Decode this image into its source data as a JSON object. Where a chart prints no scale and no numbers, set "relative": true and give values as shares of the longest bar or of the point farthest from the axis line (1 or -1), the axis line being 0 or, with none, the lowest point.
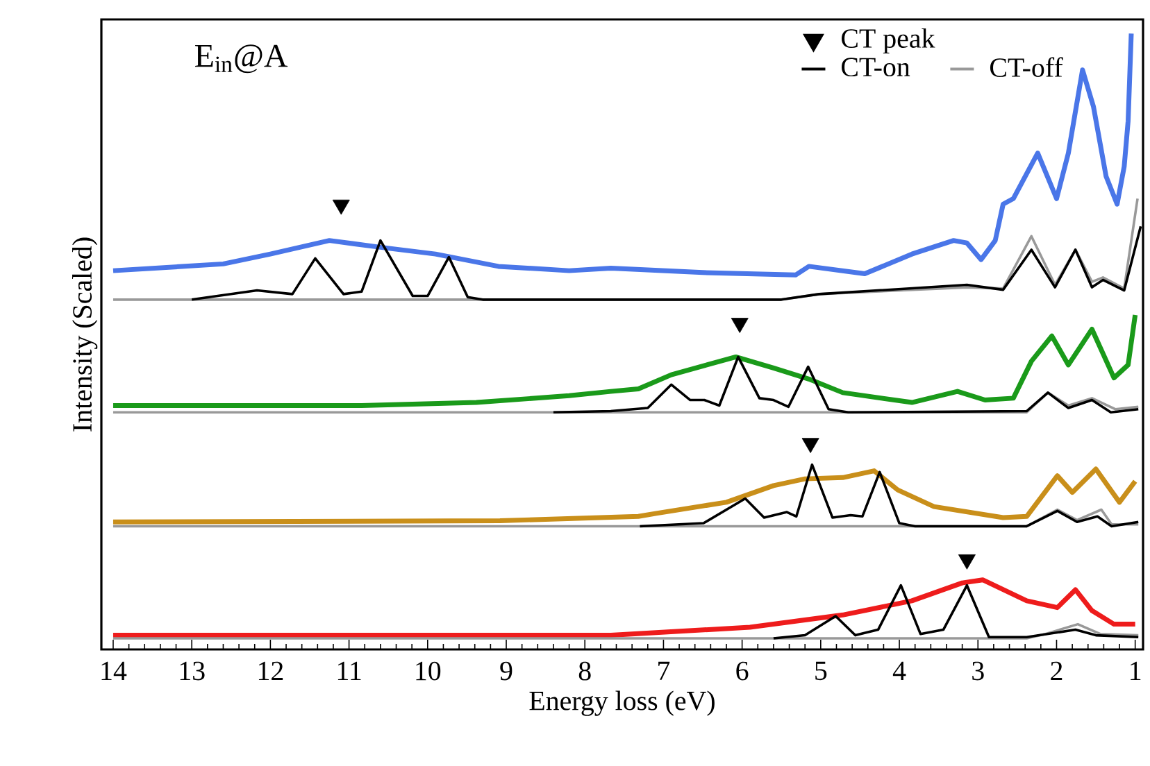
{
  "chart_data": {
    "type": "line",
    "relative": true,
    "xlabel": "Energy loss (eV)",
    "ylabel": "Intensity (Scaled)",
    "annotations": [
      "E$_{in}$@A"
    ],
    "xlim": [
      14.15,
      0.9
    ],
    "xticks": [
      14,
      13,
      12,
      11,
      10,
      9,
      8,
      7,
      6,
      5,
      4,
      3,
      2,
      1
    ],
    "legend": "top right",
    "line_style": "solid",
    "series": [
      {
        "color": "#4a76e8",
        "x": [
          14.0,
          12.6,
          12.0,
          11.25,
          10.6,
          9.9,
          9.1,
          8.2,
          7.67,
          6.5,
          5.32,
          5.15,
          4.44,
          3.84,
          3.31,
          3.14,
          2.96,
          2.78,
          2.68,
          2.55,
          2.24,
          2.0,
          1.85,
          1.67,
          1.53,
          1.37,
          1.23,
          1.14,
          1.09,
          1.05
        ],
        "values": [
          0.615,
          0.626,
          0.642,
          0.664,
          0.653,
          0.642,
          0.622,
          0.615,
          0.619,
          0.612,
          0.608,
          0.622,
          0.61,
          0.642,
          0.664,
          0.66,
          0.633,
          0.664,
          0.723,
          0.732,
          0.806,
          0.732,
          0.806,
          0.941,
          0.881,
          0.768,
          0.723,
          0.784,
          0.858,
          1
        ]
      },
      {
        "color": "#1a9a1a",
        "x": [
          14.0,
          10.84,
          9.38,
          8.2,
          7.67,
          7.32,
          6.9,
          6.08,
          5.6,
          5.15,
          4.72,
          3.84,
          3.26,
          2.91,
          2.55,
          2.32,
          2.06,
          1.85,
          1.55,
          1.27,
          1.09,
          1.0
        ],
        "values": [
          0.396,
          0.396,
          0.401,
          0.412,
          0.419,
          0.423,
          0.446,
          0.475,
          0.457,
          0.439,
          0.417,
          0.401,
          0.419,
          0.405,
          0.408,
          0.468,
          0.509,
          0.462,
          0.52,
          0.441,
          0.462,
          0.543
        ]
      },
      {
        "color": "#c98f1a",
        "x": [
          14.0,
          9.08,
          7.32,
          7.09,
          6.2,
          5.6,
          5.2,
          4.72,
          4.32,
          4.02,
          3.56,
          2.68,
          2.38,
          1.99,
          1.8,
          1.5,
          1.2,
          1.0
        ],
        "values": [
          0.207,
          0.209,
          0.216,
          0.221,
          0.239,
          0.266,
          0.277,
          0.279,
          0.29,
          0.259,
          0.232,
          0.214,
          0.216,
          0.282,
          0.255,
          0.293,
          0.239,
          0.273
        ]
      },
      {
        "color": "#ee1c1c",
        "x": [
          14.0,
          7.67,
          5.9,
          4.72,
          3.84,
          3.2,
          2.94,
          2.38,
          1.99,
          1.76,
          1.55,
          1.27,
          1.0
        ],
        "values": [
          0.023,
          0.023,
          0.036,
          0.056,
          0.079,
          0.108,
          0.113,
          0.079,
          0.068,
          0.097,
          0.063,
          0.041,
          0.041
        ]
      },
      {
        "name": "CT-off",
        "color": "#999999",
        "x": [
          14.0,
          5.5,
          5.02,
          3.14,
          2.68,
          2.32,
          2.02,
          1.76,
          1.55,
          1.41,
          1.14,
          0.97
        ],
        "values": [
          0.568,
          0.568,
          0.577,
          0.588,
          0.586,
          0.671,
          0.592,
          0.649,
          0.597,
          0.604,
          0.586,
          0.732
        ]
      },
      {
        "color": "#999999",
        "x": [
          14.0,
          2.38,
          2.11,
          1.85,
          1.55,
          1.25,
          0.96
        ],
        "values": [
          0.385,
          0.385,
          0.417,
          0.396,
          0.408,
          0.39,
          0.394
        ]
      },
      {
        "color": "#999999",
        "x": [
          14.0,
          2.38,
          1.99,
          1.74,
          1.43,
          1.3,
          0.96
        ],
        "values": [
          0.2,
          0.2,
          0.227,
          0.21,
          0.227,
          0.203,
          0.203
        ]
      },
      {
        "color": "#999999",
        "x": [
          14.0,
          2.38,
          2.14,
          1.73,
          1.44,
          0.96
        ],
        "values": [
          0.018,
          0.018,
          0.025,
          0.041,
          0.025,
          0.023
        ]
      },
      {
        "name": "CT-on",
        "color": "#000000",
        "x": [
          13.0,
          12.17,
          11.72,
          11.43,
          11.07,
          10.84,
          10.6,
          10.19,
          10.0,
          9.73,
          9.49,
          9.3,
          5.5,
          5.02,
          3.14,
          2.68,
          2.32,
          2.02,
          1.76,
          1.55,
          1.41,
          1.14,
          0.93
        ],
        "values": [
          0.568,
          0.583,
          0.577,
          0.635,
          0.577,
          0.581,
          0.664,
          0.574,
          0.574,
          0.637,
          0.572,
          0.568,
          0.568,
          0.577,
          0.592,
          0.584,
          0.649,
          0.588,
          0.649,
          0.588,
          0.6,
          0.583,
          0.687
        ]
      },
      {
        "color": "#000000",
        "x": [
          8.4,
          7.67,
          7.2,
          6.9,
          6.66,
          6.48,
          6.29,
          6.05,
          5.78,
          5.6,
          5.41,
          5.16,
          4.9,
          4.65,
          2.38,
          2.11,
          1.85,
          1.55,
          1.31,
          0.96
        ],
        "values": [
          0.385,
          0.387,
          0.392,
          0.43,
          0.405,
          0.405,
          0.396,
          0.475,
          0.408,
          0.405,
          0.394,
          0.459,
          0.39,
          0.385,
          0.387,
          0.417,
          0.392,
          0.405,
          0.385,
          0.39
        ]
      },
      {
        "color": "#000000",
        "x": [
          7.3,
          6.49,
          5.96,
          5.72,
          5.43,
          5.31,
          5.11,
          4.85,
          4.62,
          4.47,
          4.25,
          4.0,
          3.8,
          2.38,
          1.99,
          1.74,
          1.48,
          1.3,
          0.96
        ],
        "values": [
          0.2,
          0.205,
          0.245,
          0.214,
          0.223,
          0.216,
          0.3,
          0.214,
          0.218,
          0.216,
          0.288,
          0.205,
          0.2,
          0.2,
          0.225,
          0.207,
          0.216,
          0.2,
          0.207
        ]
      },
      {
        "color": "#000000",
        "x": [
          5.6,
          5.2,
          4.81,
          4.56,
          4.27,
          3.98,
          3.73,
          3.44,
          3.14,
          2.86,
          2.38,
          1.76,
          1.5,
          0.96
        ],
        "values": [
          0.018,
          0.023,
          0.054,
          0.023,
          0.032,
          0.104,
          0.025,
          0.032,
          0.104,
          0.02,
          0.02,
          0.032,
          0.023,
          0.02
        ]
      },
      {
        "name": "CT peak",
        "type": "scatter",
        "marker": "triangle",
        "color": "#000000",
        "x": [
          11.1,
          6.03,
          5.13,
          3.14
        ],
        "values": [
          0.722,
          0.53,
          0.335,
          0.146
        ]
      }
    ]
  }
}
